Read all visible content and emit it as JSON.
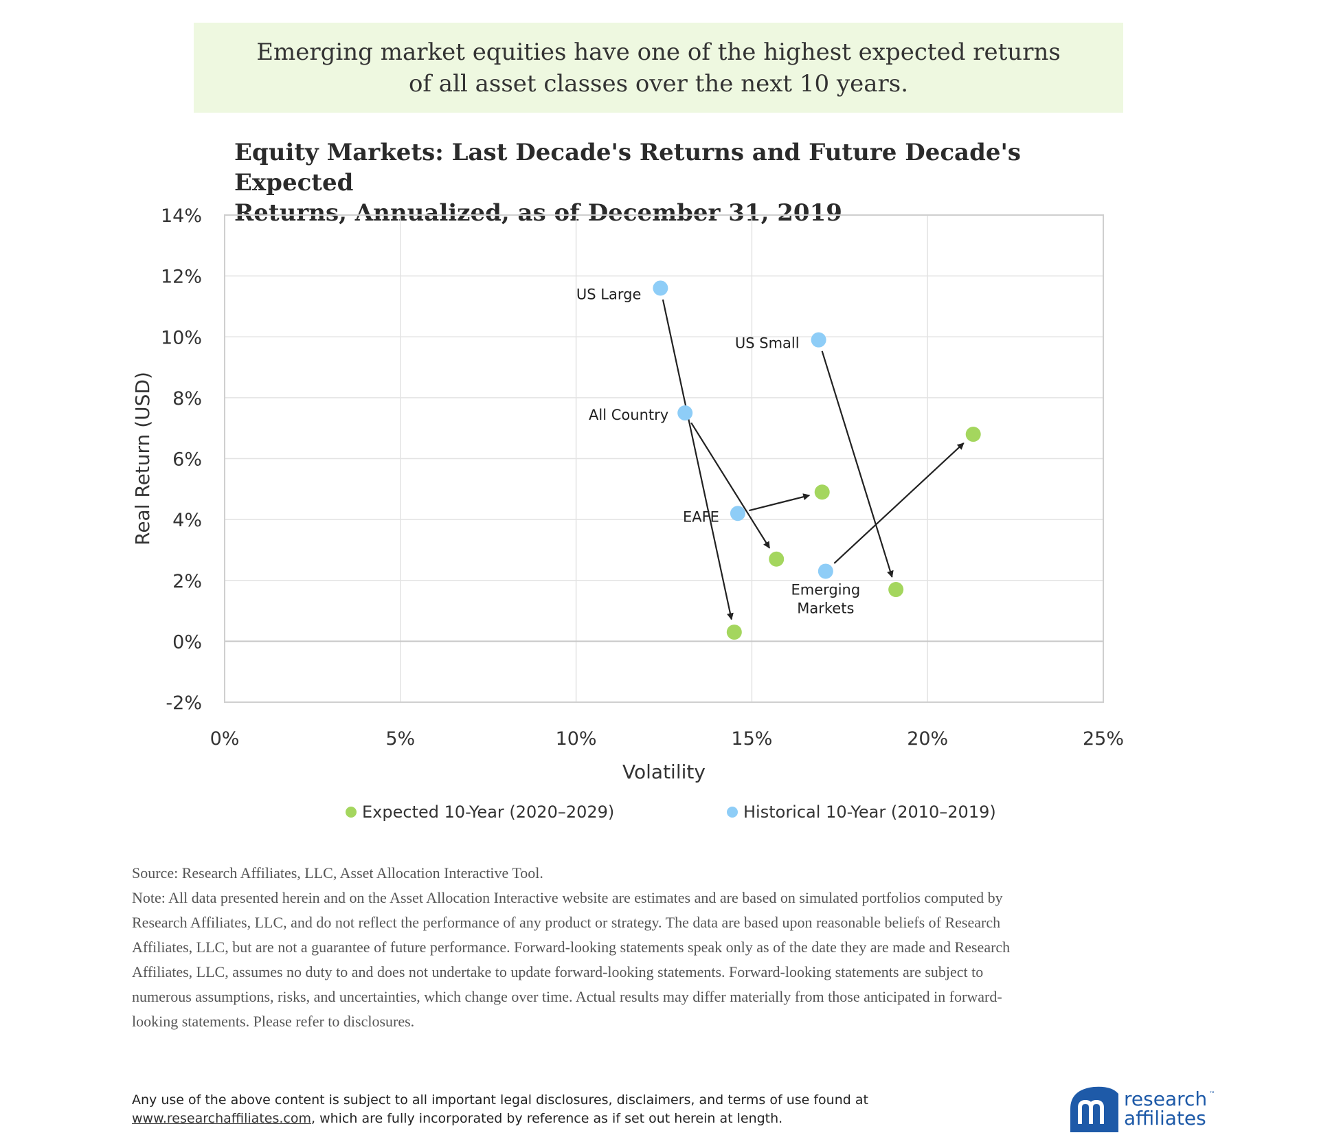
{
  "banner": {
    "line1": "Emerging market equities have one of the highest expected returns",
    "line2": "of all asset classes over the next 10 years."
  },
  "chart_data": {
    "type": "scatter",
    "title_line1": "Equity Markets: Last Decade's Returns and Future Decade's Expected",
    "title_line2": "Returns, Annualized, as of December 31, 2019",
    "xlabel": "Volatility",
    "ylabel": "Real Return (USD)",
    "xlim": [
      0,
      25
    ],
    "ylim": [
      -2,
      14
    ],
    "x_ticks": [
      0,
      5,
      10,
      15,
      20,
      25
    ],
    "y_ticks": [
      -2,
      0,
      2,
      4,
      6,
      8,
      10,
      12,
      14
    ],
    "x_tick_labels": [
      "0%",
      "5%",
      "10%",
      "15%",
      "20%",
      "25%"
    ],
    "y_tick_labels": [
      "-2%",
      "0%",
      "2%",
      "4%",
      "6%",
      "8%",
      "10%",
      "12%",
      "14%"
    ],
    "grid": true,
    "legend_position": "bottom",
    "series": [
      {
        "name": "Expected 10-Year (2020–2029)",
        "color": "#a4d65e",
        "points": [
          {
            "asset": "US Large",
            "x": 14.5,
            "y": 0.3
          },
          {
            "asset": "US Small",
            "x": 19.1,
            "y": 1.7
          },
          {
            "asset": "All Country",
            "x": 15.7,
            "y": 2.7
          },
          {
            "asset": "EAFE",
            "x": 17.0,
            "y": 4.9
          },
          {
            "asset": "Emerging Markets",
            "x": 21.3,
            "y": 6.8
          }
        ]
      },
      {
        "name": "Historical 10-Year (2010–2019)",
        "color": "#8ecdf7",
        "points": [
          {
            "asset": "US Large",
            "x": 12.4,
            "y": 11.6
          },
          {
            "asset": "US Small",
            "x": 16.9,
            "y": 9.9
          },
          {
            "asset": "All Country",
            "x": 13.1,
            "y": 7.5
          },
          {
            "asset": "EAFE",
            "x": 14.6,
            "y": 4.2
          },
          {
            "asset": "Emerging Markets",
            "x": 17.1,
            "y": 2.3
          }
        ]
      }
    ],
    "annotations": [
      {
        "text": "US Large",
        "anchor_asset": "US Large"
      },
      {
        "text": "US Small",
        "anchor_asset": "US Small"
      },
      {
        "text": "All Country",
        "anchor_asset": "All Country"
      },
      {
        "text": "EAFE",
        "anchor_asset": "EAFE"
      },
      {
        "text": "Emerging",
        "anchor_asset": "Emerging Markets"
      },
      {
        "text": "Markets",
        "anchor_asset": "Emerging Markets"
      }
    ]
  },
  "notes": {
    "source": "Source: Research Affiliates, LLC, Asset Allocation Interactive Tool.",
    "note_lines": [
      "Note: All data presented herein and on the Asset Allocation Interactive website are estimates and are based on simulated portfolios computed by",
      "Research Affiliates, LLC, and do not reflect the performance of any product or strategy. The data are based upon reasonable beliefs of Research",
      "Affiliates, LLC, but are not a guarantee of future performance. Forward-looking statements speak only as of the date they are made and Research",
      "Affiliates, LLC, assumes no duty to and does not undertake to update forward-looking statements. Forward-looking statements are subject to",
      "numerous assumptions, risks, and uncertainties, which change over time. Actual results may differ materially from those anticipated in forward-",
      "looking statements. Please refer to disclosures."
    ]
  },
  "footer": {
    "line1": "Any use of the above content is subject to all important legal disclosures, disclaimers, and terms of use found at",
    "link": "www.researchaffiliates.com",
    "line2_rest": ", which are fully incorporated by reference as if set out herein at length."
  },
  "logo": {
    "line1": "research",
    "line2": "affiliates",
    "tm": "™",
    "color": "#1e5aa8"
  }
}
